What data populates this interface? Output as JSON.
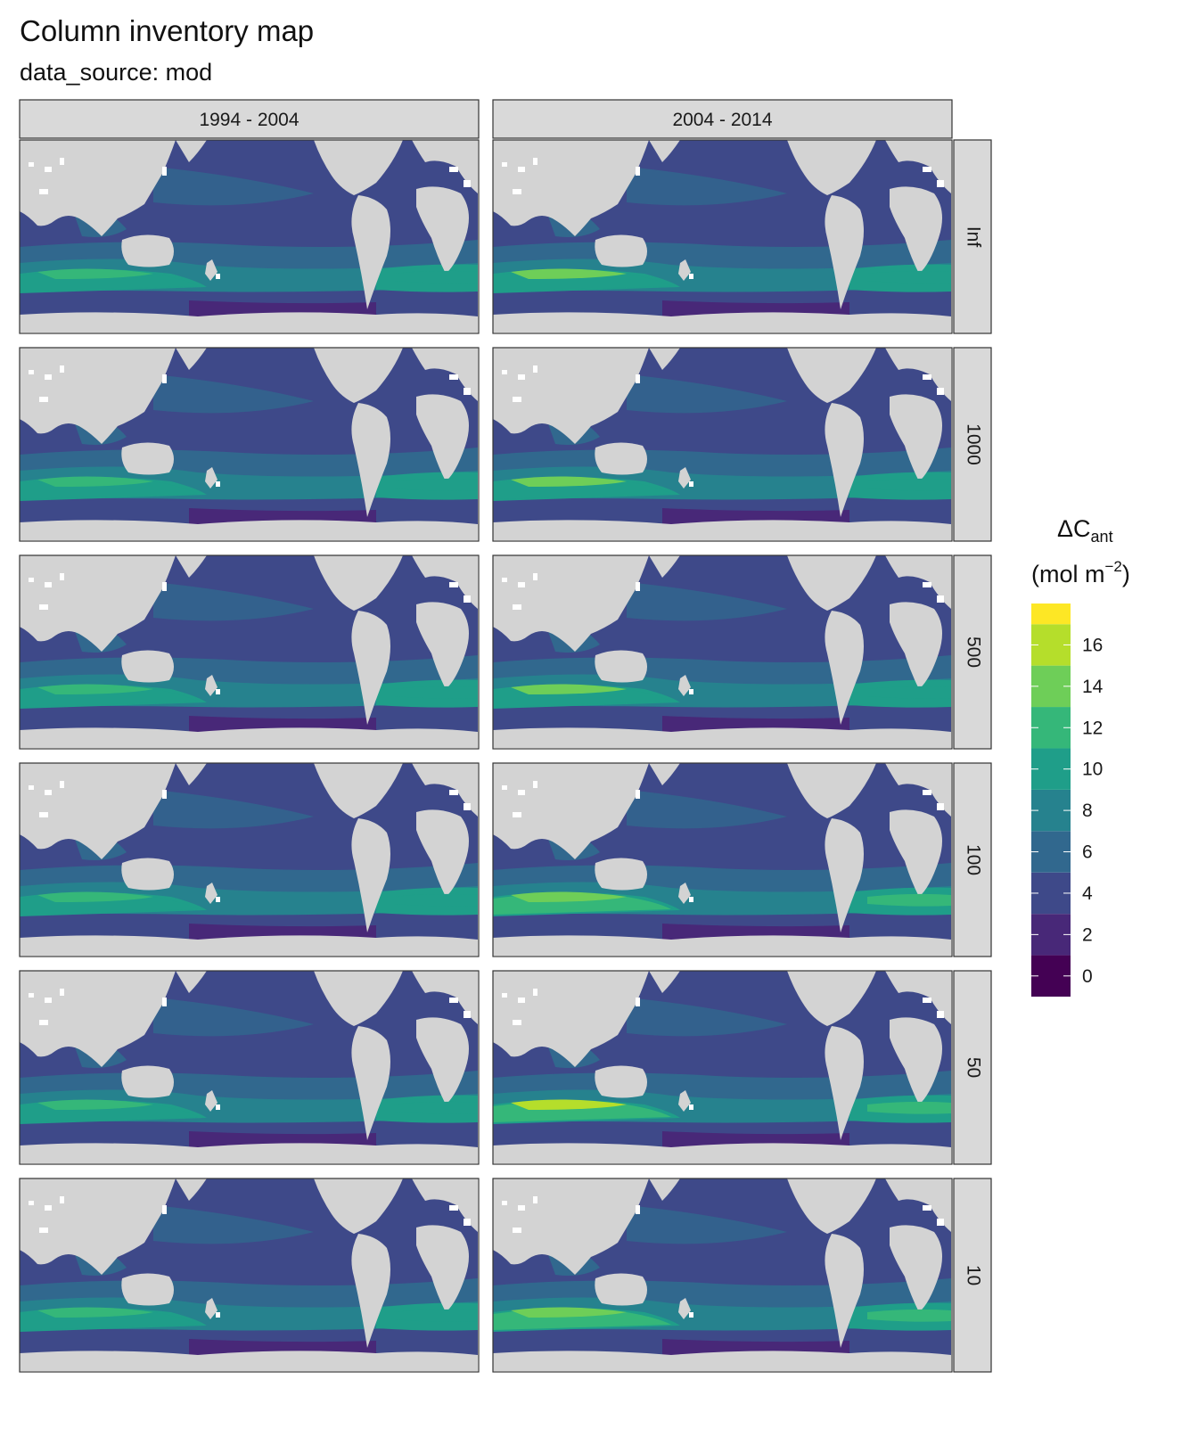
{
  "title": "Column inventory map",
  "subtitle": "data_source: mod",
  "facet_columns": [
    "1994 - 2004",
    "2004 - 2014"
  ],
  "facet_rows": [
    "Inf",
    "1000",
    "500",
    "100",
    "50",
    "10"
  ],
  "legend": {
    "title_main": "ΔC",
    "title_sub": "ant",
    "unit_prefix": "(mol m",
    "unit_exp": "−2",
    "unit_suffix": ")",
    "breaks": [
      "16",
      "14",
      "12",
      "10",
      "8",
      "6",
      "4",
      "2",
      "0"
    ],
    "colors": [
      "#fde725",
      "#b5de2b",
      "#6ece58",
      "#35b779",
      "#1f9e89",
      "#26828e",
      "#31688e",
      "#3e4989",
      "#482878",
      "#440154"
    ]
  },
  "colors": {
    "land": "#d3d3d3",
    "ocean_low": "#3e4989",
    "ocean_mid": "#31688e",
    "ocean_high": "#1f9e89",
    "strip": "#d9d9d9"
  },
  "chart_data": {
    "type": "heatmap",
    "x": "longitude",
    "y": "latitude",
    "value": "ΔC_ant column inventory",
    "facets": {
      "columns": [
        "1994 - 2004",
        "2004 - 2014"
      ],
      "rows": [
        "Inf",
        "1000",
        "500",
        "100",
        "50",
        "10"
      ]
    },
    "legend_placement": "right",
    "scale_range": [
      -1,
      18
    ],
    "scale_breaks": [
      0,
      2,
      4,
      6,
      8,
      10,
      12,
      14,
      16
    ],
    "bins": [
      {
        "from": -1,
        "to": 1,
        "color": "#440154"
      },
      {
        "from": 1,
        "to": 3,
        "color": "#482878"
      },
      {
        "from": 3,
        "to": 5,
        "color": "#3e4989"
      },
      {
        "from": 5,
        "to": 7,
        "color": "#31688e"
      },
      {
        "from": 7,
        "to": 9,
        "color": "#26828e"
      },
      {
        "from": 9,
        "to": 11,
        "color": "#1f9e89"
      },
      {
        "from": 11,
        "to": 13,
        "color": "#35b779"
      },
      {
        "from": 13,
        "to": 15,
        "color": "#6ece58"
      },
      {
        "from": 15,
        "to": 17,
        "color": "#b5de2b"
      },
      {
        "from": 17,
        "to": 19,
        "color": "#fde725"
      }
    ],
    "panels": [
      {
        "column": "1994 - 2004",
        "row": "Inf",
        "southern_band_level": 9,
        "max_southern": 12
      },
      {
        "column": "2004 - 2014",
        "row": "Inf",
        "southern_band_level": 10,
        "max_southern": 13
      },
      {
        "column": "1994 - 2004",
        "row": "1000",
        "southern_band_level": 9,
        "max_southern": 11
      },
      {
        "column": "2004 - 2014",
        "row": "1000",
        "southern_band_level": 10,
        "max_southern": 13
      },
      {
        "column": "1994 - 2004",
        "row": "500",
        "southern_band_level": 9,
        "max_southern": 11
      },
      {
        "column": "2004 - 2014",
        "row": "500",
        "southern_band_level": 10,
        "max_southern": 14
      },
      {
        "column": "1994 - 2004",
        "row": "100",
        "southern_band_level": 9,
        "max_southern": 12
      },
      {
        "column": "2004 - 2014",
        "row": "100",
        "southern_band_level": 11,
        "max_southern": 14
      },
      {
        "column": "1994 - 2004",
        "row": "50",
        "southern_band_level": 9,
        "max_southern": 12
      },
      {
        "column": "2004 - 2014",
        "row": "50",
        "southern_band_level": 11,
        "max_southern": 15
      },
      {
        "column": "1994 - 2004",
        "row": "10",
        "southern_band_level": 9,
        "max_southern": 12
      },
      {
        "column": "2004 - 2014",
        "row": "10",
        "southern_band_level": 11,
        "max_southern": 14
      }
    ]
  }
}
